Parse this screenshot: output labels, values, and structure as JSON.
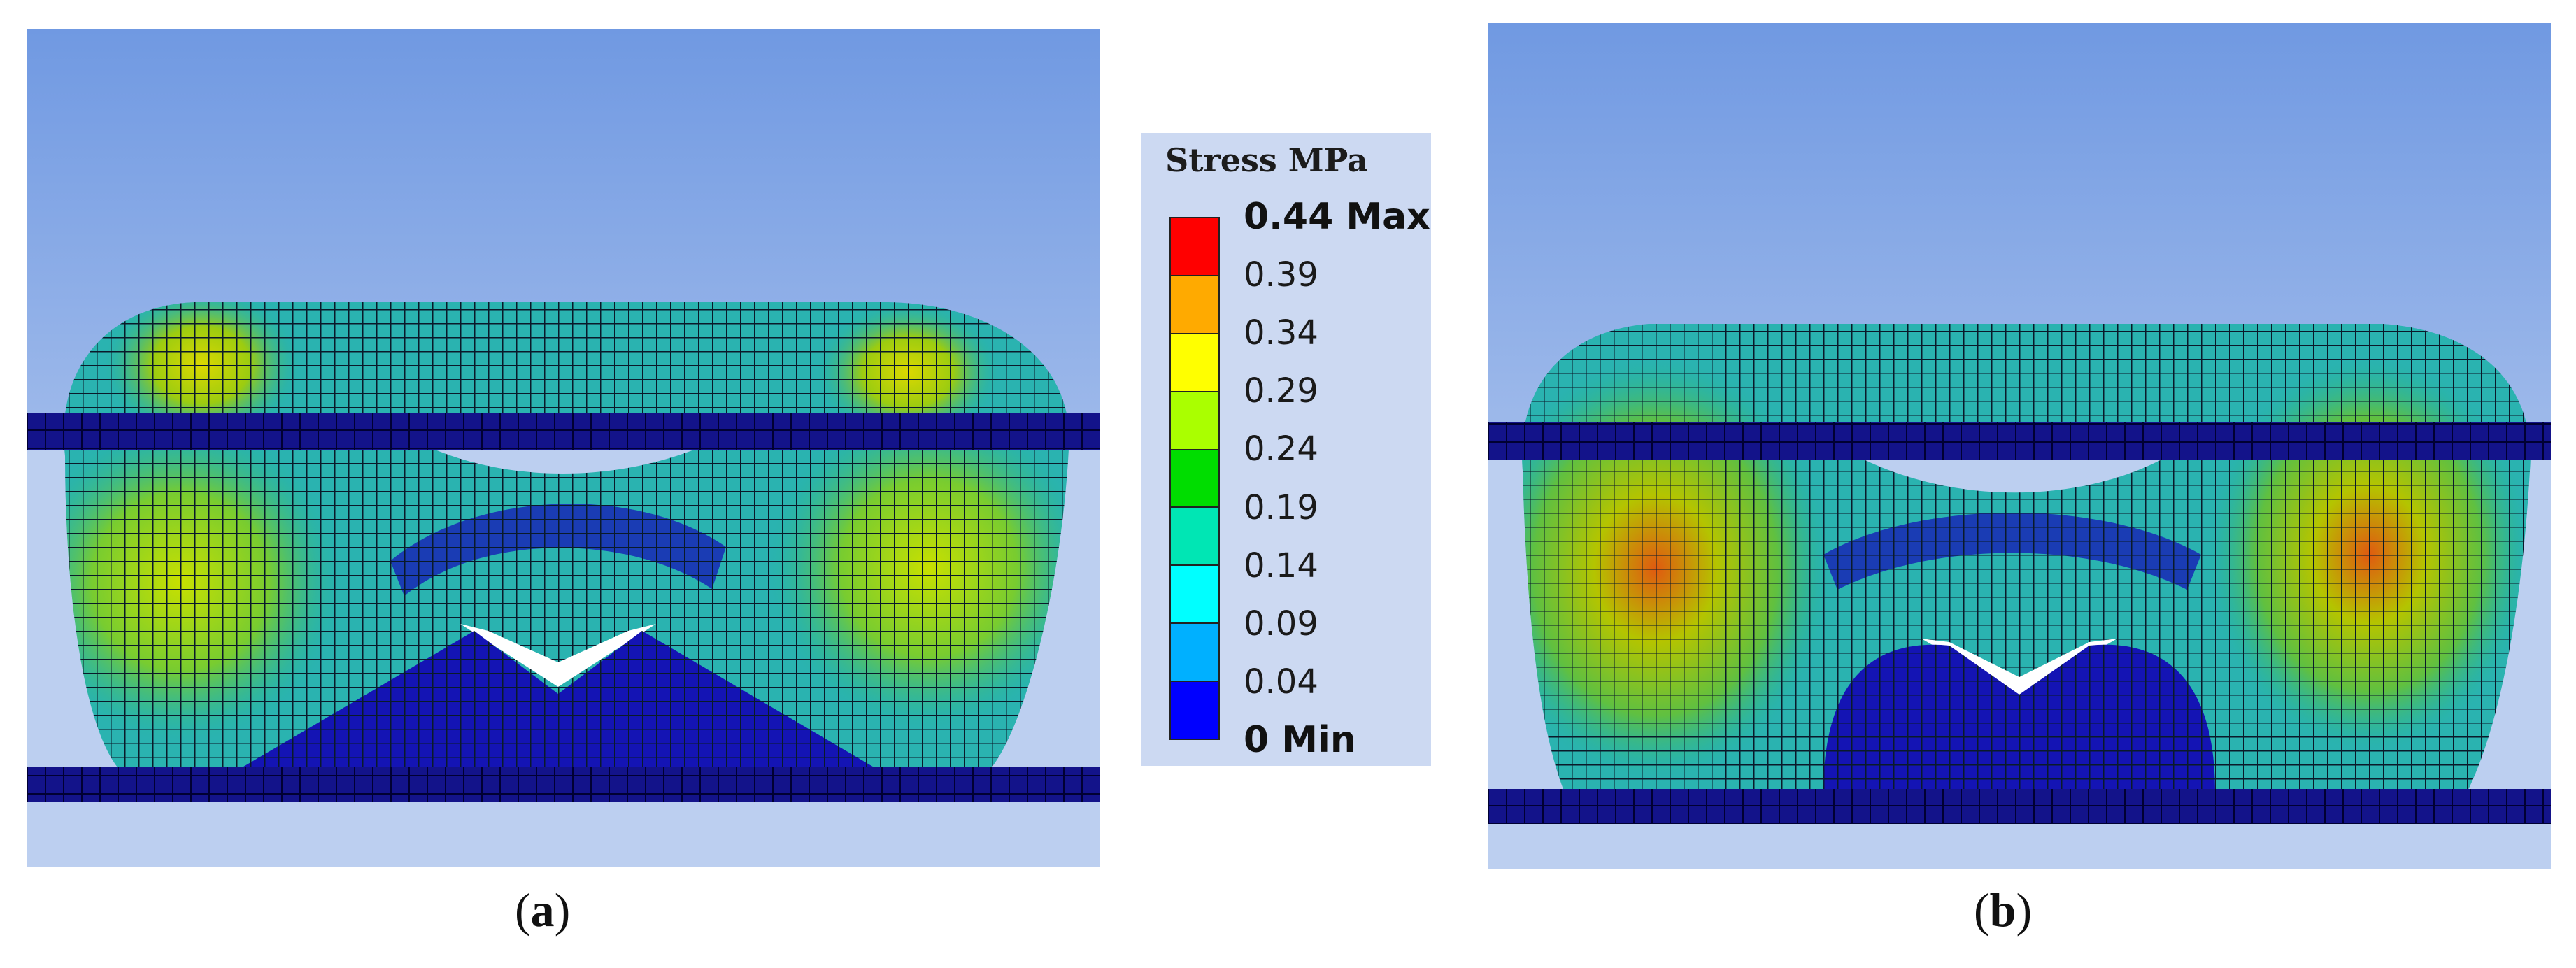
{
  "legend": {
    "title": "Stress MPa",
    "labels": [
      "0.44 Max",
      "0.39",
      "0.34",
      "0.29",
      "0.24",
      "0.19",
      "0.14",
      "0.09",
      "0.04",
      "0 Min"
    ],
    "colors": [
      "#ff0000",
      "#ffaa00",
      "#ffff00",
      "#aaff00",
      "#00dd00",
      "#00e6b4",
      "#00ffff",
      "#00b0ff",
      "#0000ff"
    ]
  },
  "captions": {
    "a": {
      "open": "(",
      "letter": "a",
      "close": ")"
    },
    "b": {
      "open": "(",
      "letter": "b",
      "close": ")"
    }
  }
}
